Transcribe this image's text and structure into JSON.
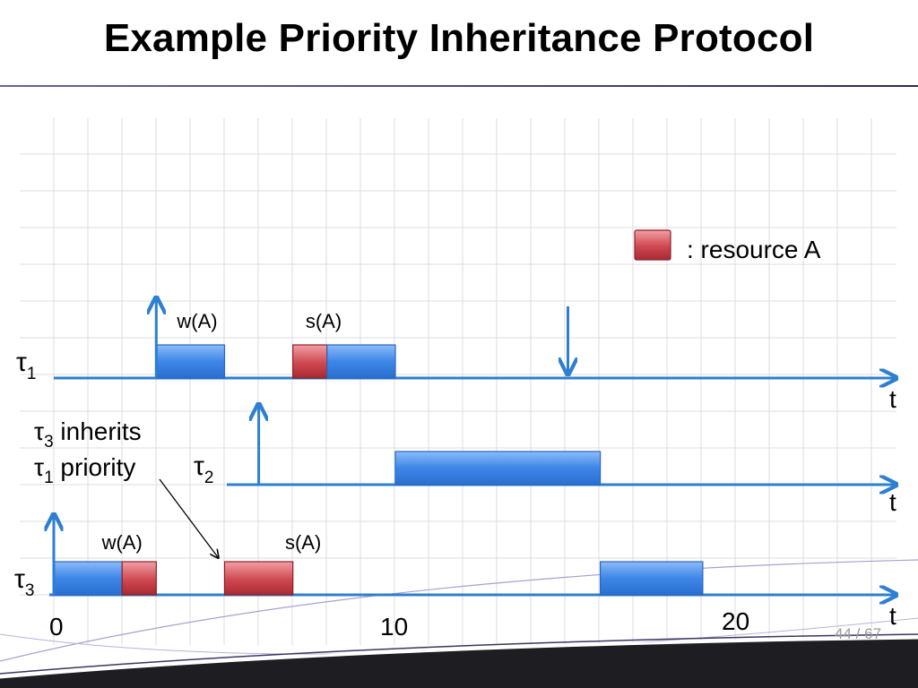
{
  "slide": {
    "title": "Example Priority Inheritance Protocol",
    "page_current": "44",
    "page_separator": "/",
    "page_total": "67"
  },
  "legend": {
    "label": ": resource A"
  },
  "colors": {
    "execution": "#3d86e8",
    "resource": "#c0404a",
    "axis": "#2e7fd0",
    "grid": "#d9d9d9"
  },
  "tasks": [
    {
      "id": "tau1",
      "symbol": "τ",
      "subscript": "1",
      "release": 3,
      "deadline": 15,
      "axis_label": "t",
      "blocks": [
        {
          "start": 3,
          "end": 5,
          "kind": "execution"
        },
        {
          "start": 7,
          "end": 8,
          "kind": "resource"
        },
        {
          "start": 8,
          "end": 10,
          "kind": "execution"
        }
      ],
      "annotations": [
        {
          "text": "w(A)",
          "at": 4.2
        },
        {
          "text": "s(A)",
          "at": 7.9
        }
      ]
    },
    {
      "id": "tau2",
      "symbol": "τ",
      "subscript": "2",
      "release": 6,
      "axis_label": "t",
      "blocks": [
        {
          "start": 10,
          "end": 16,
          "kind": "execution"
        }
      ],
      "annotations": []
    },
    {
      "id": "tau3",
      "symbol": "τ",
      "subscript": "3",
      "release": 0,
      "axis_label": "t",
      "blocks": [
        {
          "start": 0,
          "end": 2,
          "kind": "execution"
        },
        {
          "start": 2,
          "end": 3,
          "kind": "resource"
        },
        {
          "start": 5,
          "end": 7,
          "kind": "resource"
        },
        {
          "start": 16,
          "end": 19,
          "kind": "execution"
        }
      ],
      "annotations": [
        {
          "text": "w(A)",
          "at": 2
        },
        {
          "text": "s(A)",
          "at": 7.3
        }
      ]
    }
  ],
  "time_ticks": [
    "0",
    "10",
    "20"
  ],
  "note": {
    "line1_symbol": "τ",
    "line1_sub": "3",
    "line1_text": "inherits",
    "line2_symbol": "τ",
    "line2_sub": "1",
    "line2_text": "priority"
  }
}
